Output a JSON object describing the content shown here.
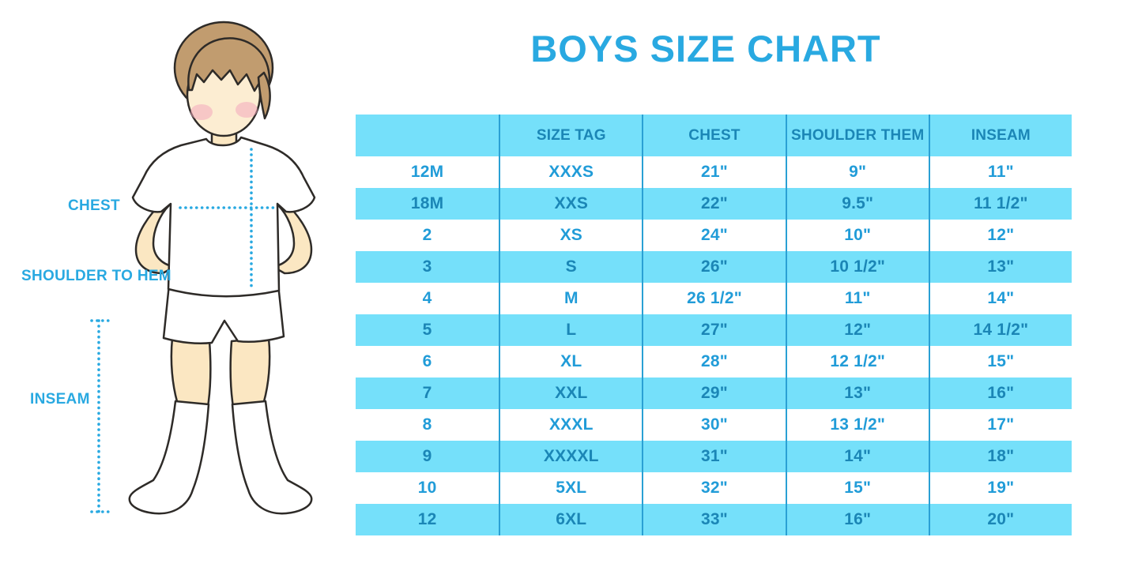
{
  "title": "BOYS SIZE CHART",
  "colors": {
    "accent": "#29A9E1",
    "table_band": "#75E0FA",
    "text_on_white": "#219CD8",
    "text_on_blue": "#1B86B6",
    "column_line": "#2AA0D4",
    "skin": "#FBE7C2",
    "hair": "#C19C6F",
    "cheek": "#F2A8BB",
    "outline": "#2E2B28"
  },
  "figure": {
    "labels": {
      "chest": "CHEST",
      "shoulder_to_hem": "SHOULDER TO HEM",
      "inseam": "INSEAM"
    }
  },
  "chart_data": {
    "type": "table",
    "title": "BOYS SIZE CHART",
    "columns": [
      "",
      "SIZE TAG",
      "CHEST",
      "SHOULDER THEM",
      "INSEAM"
    ],
    "rows": [
      [
        "12M",
        "XXXS",
        "21\"",
        "9\"",
        "11\""
      ],
      [
        "18M",
        "XXS",
        "22\"",
        "9.5\"",
        "11 1/2\""
      ],
      [
        "2",
        "XS",
        "24\"",
        "10\"",
        "12\""
      ],
      [
        "3",
        "S",
        "26\"",
        "10 1/2\"",
        "13\""
      ],
      [
        "4",
        "M",
        "26 1/2\"",
        "11\"",
        "14\""
      ],
      [
        "5",
        "L",
        "27\"",
        "12\"",
        "14 1/2\""
      ],
      [
        "6",
        "XL",
        "28\"",
        "12 1/2\"",
        "15\""
      ],
      [
        "7",
        "XXL",
        "29\"",
        "13\"",
        "16\""
      ],
      [
        "8",
        "XXXL",
        "30\"",
        "13 1/2\"",
        "17\""
      ],
      [
        "9",
        "XXXXL",
        "31\"",
        "14\"",
        "18\""
      ],
      [
        "10",
        "5XL",
        "32\"",
        "15\"",
        "19\""
      ],
      [
        "12",
        "6XL",
        "33\"",
        "16\"",
        "20\""
      ]
    ],
    "layout": {
      "row_striping": "white/blue alternating, header blue",
      "grid": "vertical column separators only"
    }
  }
}
